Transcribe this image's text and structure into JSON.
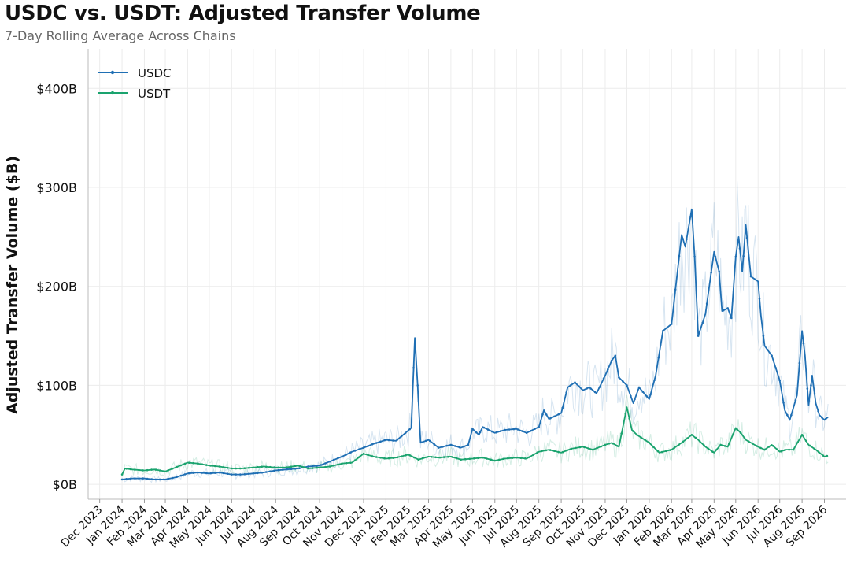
{
  "chart_data": {
    "type": "line",
    "title": "USDC vs. USDT: Adjusted Transfer Volume",
    "subtitle": "7-Day Rolling Average Across Chains",
    "xlabel": "",
    "ylabel": "Adjusted Transfer Volume ($B)",
    "ylim": [
      -15,
      440
    ],
    "y_ticks": [
      0,
      100,
      200,
      300,
      400
    ],
    "y_tick_labels": [
      "$0B",
      "$100B",
      "$200B",
      "$300B",
      "$400B"
    ],
    "x_ticks": [
      "Dec 2023",
      "Jan 2024",
      "Feb 2024",
      "Mar 2024",
      "Apr 2024",
      "May 2024",
      "Jun 2024",
      "Jul 2024",
      "Aug 2024",
      "Sep 2024",
      "Oct 2024",
      "Nov 2024",
      "Dec 2024",
      "Jan 2025",
      "Feb 2025",
      "Mar 2025",
      "Apr 2025",
      "May 2025",
      "Jun 2025",
      "Jul 2025",
      "Aug 2025",
      "Sep 2025",
      "Oct 2025",
      "Nov 2025",
      "Dec 2025",
      "Jan 2026",
      "Feb 2026",
      "Mar 2026",
      "Apr 2026",
      "May 2026",
      "Jun 2026",
      "Jul 2026",
      "Aug 2026",
      "Sep 2026"
    ],
    "grid": true,
    "legend_position": "top-left",
    "series": [
      {
        "name": "USDC",
        "color": "#1f6fb4",
        "points": [
          [
            "2024-01-01",
            5
          ],
          [
            "2024-01-15",
            6
          ],
          [
            "2024-02-01",
            6
          ],
          [
            "2024-02-15",
            5
          ],
          [
            "2024-03-01",
            5
          ],
          [
            "2024-03-15",
            7
          ],
          [
            "2024-04-01",
            11
          ],
          [
            "2024-04-15",
            12
          ],
          [
            "2024-05-01",
            11
          ],
          [
            "2024-05-15",
            12
          ],
          [
            "2024-06-01",
            10
          ],
          [
            "2024-06-15",
            10
          ],
          [
            "2024-07-01",
            11
          ],
          [
            "2024-07-15",
            12
          ],
          [
            "2024-08-01",
            14
          ],
          [
            "2024-08-15",
            15
          ],
          [
            "2024-09-01",
            16
          ],
          [
            "2024-09-15",
            18
          ],
          [
            "2024-10-01",
            19
          ],
          [
            "2024-10-15",
            23
          ],
          [
            "2024-11-01",
            28
          ],
          [
            "2024-11-15",
            33
          ],
          [
            "2024-12-01",
            37
          ],
          [
            "2024-12-15",
            41
          ],
          [
            "2025-01-01",
            45
          ],
          [
            "2025-01-15",
            44
          ],
          [
            "2025-01-28",
            52
          ],
          [
            "2025-02-05",
            57
          ],
          [
            "2025-02-10",
            148
          ],
          [
            "2025-02-14",
            100
          ],
          [
            "2025-02-18",
            42
          ],
          [
            "2025-03-01",
            45
          ],
          [
            "2025-03-15",
            37
          ],
          [
            "2025-04-01",
            40
          ],
          [
            "2025-04-15",
            37
          ],
          [
            "2025-04-25",
            40
          ],
          [
            "2025-05-01",
            56
          ],
          [
            "2025-05-10",
            50
          ],
          [
            "2025-05-15",
            58
          ],
          [
            "2025-06-01",
            52
          ],
          [
            "2025-06-15",
            55
          ],
          [
            "2025-07-01",
            56
          ],
          [
            "2025-07-15",
            52
          ],
          [
            "2025-08-01",
            58
          ],
          [
            "2025-08-08",
            75
          ],
          [
            "2025-08-15",
            66
          ],
          [
            "2025-09-01",
            72
          ],
          [
            "2025-09-10",
            98
          ],
          [
            "2025-09-20",
            103
          ],
          [
            "2025-10-01",
            95
          ],
          [
            "2025-10-10",
            98
          ],
          [
            "2025-10-20",
            92
          ],
          [
            "2025-11-01",
            110
          ],
          [
            "2025-11-10",
            125
          ],
          [
            "2025-11-15",
            130
          ],
          [
            "2025-11-20",
            108
          ],
          [
            "2025-12-01",
            100
          ],
          [
            "2025-12-10",
            82
          ],
          [
            "2025-12-18",
            98
          ],
          [
            "2025-12-25",
            92
          ],
          [
            "2026-01-01",
            86
          ],
          [
            "2026-01-10",
            110
          ],
          [
            "2026-01-20",
            155
          ],
          [
            "2026-02-01",
            162
          ],
          [
            "2026-02-10",
            220
          ],
          [
            "2026-02-15",
            252
          ],
          [
            "2026-02-20",
            240
          ],
          [
            "2026-03-01",
            278
          ],
          [
            "2026-03-05",
            230
          ],
          [
            "2026-03-10",
            150
          ],
          [
            "2026-03-20",
            172
          ],
          [
            "2026-04-01",
            235
          ],
          [
            "2026-04-08",
            215
          ],
          [
            "2026-04-12",
            175
          ],
          [
            "2026-04-20",
            178
          ],
          [
            "2026-04-25",
            168
          ],
          [
            "2026-05-01",
            230
          ],
          [
            "2026-05-05",
            250
          ],
          [
            "2026-05-10",
            215
          ],
          [
            "2026-05-15",
            262
          ],
          [
            "2026-05-22",
            210
          ],
          [
            "2026-06-01",
            205
          ],
          [
            "2026-06-05",
            170
          ],
          [
            "2026-06-10",
            140
          ],
          [
            "2026-06-20",
            130
          ],
          [
            "2026-07-01",
            105
          ],
          [
            "2026-07-08",
            75
          ],
          [
            "2026-07-15",
            65
          ],
          [
            "2026-07-25",
            90
          ],
          [
            "2026-08-01",
            155
          ],
          [
            "2026-08-05",
            130
          ],
          [
            "2026-08-10",
            80
          ],
          [
            "2026-08-15",
            110
          ],
          [
            "2026-08-20",
            82
          ],
          [
            "2026-08-25",
            70
          ],
          [
            "2026-09-01",
            65
          ],
          [
            "2026-09-06",
            68
          ]
        ]
      },
      {
        "name": "USDT",
        "color": "#1aa36e",
        "points": [
          [
            "2024-01-01",
            10
          ],
          [
            "2024-01-05",
            16
          ],
          [
            "2024-01-15",
            15
          ],
          [
            "2024-02-01",
            14
          ],
          [
            "2024-02-15",
            15
          ],
          [
            "2024-03-01",
            13
          ],
          [
            "2024-03-15",
            17
          ],
          [
            "2024-04-01",
            22
          ],
          [
            "2024-04-15",
            21
          ],
          [
            "2024-05-01",
            19
          ],
          [
            "2024-05-15",
            18
          ],
          [
            "2024-06-01",
            16
          ],
          [
            "2024-06-15",
            16
          ],
          [
            "2024-07-01",
            17
          ],
          [
            "2024-07-15",
            18
          ],
          [
            "2024-08-01",
            17
          ],
          [
            "2024-08-15",
            17
          ],
          [
            "2024-09-01",
            19
          ],
          [
            "2024-09-15",
            16
          ],
          [
            "2024-10-01",
            17
          ],
          [
            "2024-10-15",
            18
          ],
          [
            "2024-11-01",
            21
          ],
          [
            "2024-11-15",
            22
          ],
          [
            "2024-12-01",
            31
          ],
          [
            "2024-12-15",
            28
          ],
          [
            "2025-01-01",
            26
          ],
          [
            "2025-01-15",
            27
          ],
          [
            "2025-02-01",
            30
          ],
          [
            "2025-02-15",
            25
          ],
          [
            "2025-03-01",
            28
          ],
          [
            "2025-03-15",
            27
          ],
          [
            "2025-04-01",
            28
          ],
          [
            "2025-04-15",
            25
          ],
          [
            "2025-05-01",
            26
          ],
          [
            "2025-05-15",
            27
          ],
          [
            "2025-06-01",
            24
          ],
          [
            "2025-06-15",
            26
          ],
          [
            "2025-07-01",
            27
          ],
          [
            "2025-07-15",
            26
          ],
          [
            "2025-08-01",
            33
          ],
          [
            "2025-08-15",
            35
          ],
          [
            "2025-09-01",
            32
          ],
          [
            "2025-09-15",
            36
          ],
          [
            "2025-10-01",
            38
          ],
          [
            "2025-10-15",
            35
          ],
          [
            "2025-11-01",
            40
          ],
          [
            "2025-11-10",
            42
          ],
          [
            "2025-11-20",
            38
          ],
          [
            "2025-12-01",
            78
          ],
          [
            "2025-12-08",
            55
          ],
          [
            "2025-12-15",
            50
          ],
          [
            "2026-01-01",
            42
          ],
          [
            "2026-01-15",
            32
          ],
          [
            "2026-02-01",
            35
          ],
          [
            "2026-02-15",
            42
          ],
          [
            "2026-03-01",
            50
          ],
          [
            "2026-03-10",
            45
          ],
          [
            "2026-03-20",
            38
          ],
          [
            "2026-04-01",
            32
          ],
          [
            "2026-04-10",
            40
          ],
          [
            "2026-04-20",
            38
          ],
          [
            "2026-05-01",
            57
          ],
          [
            "2026-05-08",
            52
          ],
          [
            "2026-05-15",
            45
          ],
          [
            "2026-06-01",
            38
          ],
          [
            "2026-06-10",
            35
          ],
          [
            "2026-06-20",
            40
          ],
          [
            "2026-07-01",
            33
          ],
          [
            "2026-07-10",
            35
          ],
          [
            "2026-07-20",
            35
          ],
          [
            "2026-08-01",
            50
          ],
          [
            "2026-08-10",
            40
          ],
          [
            "2026-08-20",
            35
          ],
          [
            "2026-09-01",
            28
          ],
          [
            "2026-09-06",
            29
          ]
        ]
      }
    ]
  }
}
